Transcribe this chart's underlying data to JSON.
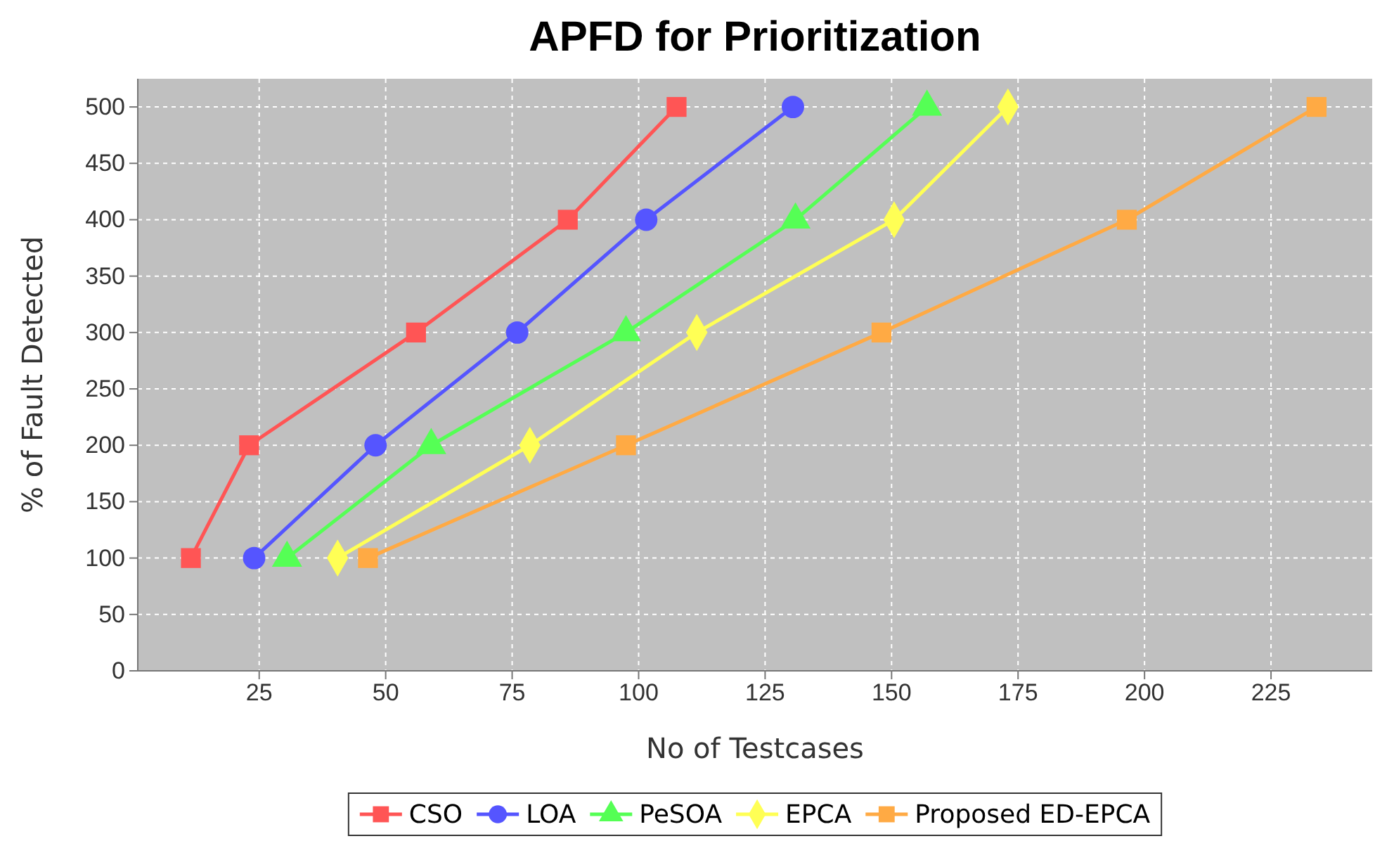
{
  "chart_data": {
    "type": "line",
    "title": "APFD for Prioritization",
    "xlabel": "No of Testcases",
    "ylabel": "% of Fault Detected",
    "xlim": [
      1,
      245
    ],
    "xticks": [
      25,
      50,
      75,
      100,
      125,
      150,
      175,
      200,
      225
    ],
    "ylim": [
      0,
      525
    ],
    "yticks": [
      0,
      50,
      100,
      150,
      200,
      250,
      300,
      350,
      400,
      450,
      500
    ],
    "grid": true,
    "legend": "bottom",
    "line_style": "solid",
    "series": [
      {
        "name": "CSO",
        "color": "#ff5555",
        "marker": "square",
        "x": [
          11.5,
          23,
          56,
          86,
          107.5
        ],
        "values": [
          100,
          200,
          300,
          400,
          500
        ]
      },
      {
        "name": "LOA",
        "color": "#5555ff",
        "marker": "circle",
        "x": [
          24,
          48,
          76,
          101.5,
          130.5
        ],
        "values": [
          100,
          200,
          300,
          400,
          500
        ]
      },
      {
        "name": "PeSOA",
        "color": "#55ff55",
        "marker": "triangle",
        "x": [
          30.5,
          59,
          97.5,
          131,
          157
        ],
        "values": [
          100,
          200,
          300,
          400,
          500
        ]
      },
      {
        "name": "EPCA",
        "color": "#ffff55",
        "marker": "diamond",
        "x": [
          40.5,
          78.5,
          111.5,
          150.5,
          173
        ],
        "values": [
          100,
          200,
          300,
          400,
          500
        ]
      },
      {
        "name": "Proposed ED-EPCA",
        "color": "#ffaa44",
        "marker": "square",
        "x": [
          46.5,
          97.5,
          148,
          196.5,
          234
        ],
        "values": [
          100,
          200,
          300,
          400,
          500
        ]
      }
    ]
  }
}
